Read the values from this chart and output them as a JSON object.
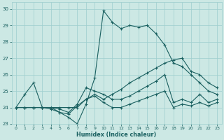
{
  "xlabel": "Humidex (Indice chaleur)",
  "bg_color": "#cce8e4",
  "grid_color": "#9ecece",
  "line_color": "#1a6060",
  "xlim": [
    -0.5,
    23.5
  ],
  "ylim": [
    23,
    30.4
  ],
  "yticks": [
    23,
    24,
    25,
    26,
    27,
    28,
    29,
    30
  ],
  "xticks": [
    0,
    1,
    2,
    3,
    4,
    5,
    6,
    7,
    8,
    9,
    10,
    11,
    12,
    13,
    14,
    15,
    16,
    17,
    18,
    19,
    20,
    21,
    22,
    23
  ],
  "series1": [
    24.0,
    24.8,
    25.5,
    24.0,
    24.0,
    23.7,
    23.4,
    23.0,
    24.2,
    25.8,
    29.9,
    29.2,
    28.8,
    29.0,
    28.9,
    29.0,
    28.5,
    27.8,
    26.7,
    26.5,
    26.0,
    25.5,
    25.0,
    24.8
  ],
  "series2": [
    24.0,
    24.0,
    24.0,
    24.0,
    24.0,
    23.9,
    23.7,
    24.2,
    25.2,
    25.0,
    24.8,
    24.5,
    24.5,
    24.7,
    25.0,
    25.3,
    25.6,
    26.0,
    24.3,
    24.5,
    24.3,
    24.8,
    24.3,
    24.5
  ],
  "series3": [
    24.0,
    24.0,
    24.0,
    24.0,
    24.0,
    24.0,
    24.0,
    24.0,
    24.5,
    24.7,
    24.3,
    24.0,
    24.0,
    24.2,
    24.4,
    24.6,
    24.8,
    25.0,
    24.0,
    24.2,
    24.1,
    24.3,
    24.1,
    24.3
  ],
  "series4": [
    24.0,
    24.0,
    24.0,
    24.0,
    23.9,
    23.7,
    23.6,
    24.1,
    24.5,
    24.8,
    24.5,
    24.8,
    25.1,
    25.5,
    25.8,
    26.1,
    26.4,
    26.7,
    26.9,
    27.0,
    26.2,
    26.0,
    25.5,
    25.2
  ],
  "marker": "+"
}
